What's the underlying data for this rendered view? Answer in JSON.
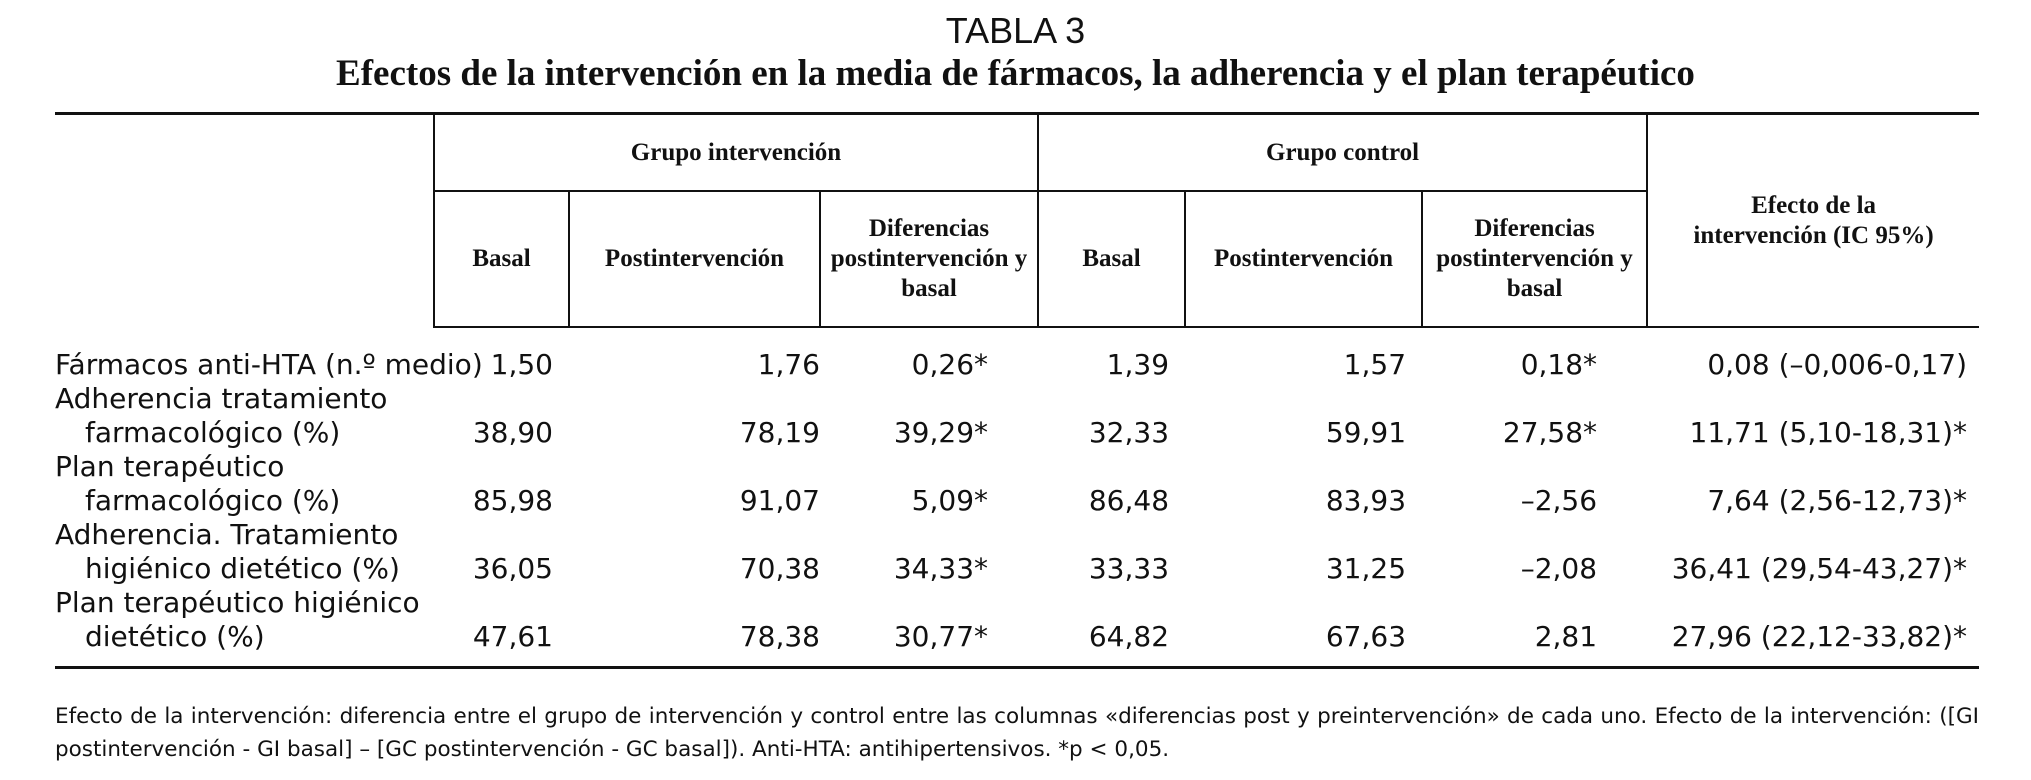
{
  "caption": {
    "number": "TABLA 3",
    "title": "Efectos de la intervención en la media de fármacos, la adherencia y el plan terapéutico"
  },
  "table": {
    "groups": [
      "Grupo intervención",
      "Grupo control"
    ],
    "effect_header": "Efecto de la intervención (IC 95%)",
    "subheaders": [
      "Basal",
      "Postintervención",
      "Diferencias postintervención y basal",
      "Basal",
      "Postintervención",
      "Diferencias postintervención y basal"
    ],
    "rows": [
      {
        "label": [
          "Fármacos anti-HTA (n.º medio)"
        ],
        "cells": [
          "1,50",
          "1,76",
          "0,26*",
          "1,39",
          "1,57",
          "0,18*",
          "0,08 (–0,006-0,17)"
        ]
      },
      {
        "label": [
          "Adherencia tratamiento",
          "farmacológico (%)"
        ],
        "cells": [
          "38,90",
          "78,19",
          "39,29*",
          "32,33",
          "59,91",
          "27,58*",
          "11,71 (5,10-18,31)*"
        ]
      },
      {
        "label": [
          "Plan terapéutico",
          "farmacológico (%)"
        ],
        "cells": [
          "85,98",
          "91,07",
          "5,09*",
          "86,48",
          "83,93",
          "–2,56",
          "7,64 (2,56-12,73)*"
        ]
      },
      {
        "label": [
          "Adherencia. Tratamiento",
          "higiénico dietético (%)"
        ],
        "cells": [
          "36,05",
          "70,38",
          "34,33*",
          "33,33",
          "31,25",
          "–2,08",
          "36,41 (29,54-43,27)*"
        ]
      },
      {
        "label": [
          "Plan terapéutico higiénico",
          "dietético (%)"
        ],
        "cells": [
          "47,61",
          "78,38",
          "30,77*",
          "64,82",
          "67,63",
          "2,81",
          "27,96 (22,12-33,82)*"
        ]
      }
    ]
  },
  "footnote": "Efecto de la intervención: diferencia entre el grupo de intervención y control entre las columnas «diferencias post y preintervención» de cada uno. Efecto de la intervención: ([GI postintervención - GI basal] – [GC postintervención - GC basal]). Anti-HTA: antihipertensivos. *p < 0,05."
}
